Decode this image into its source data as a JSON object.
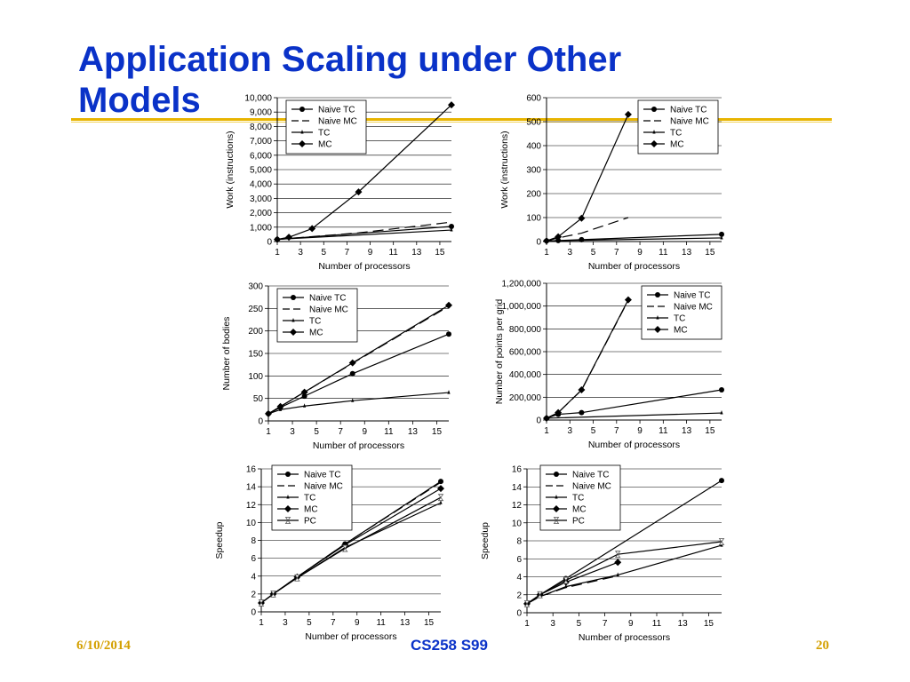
{
  "slide": {
    "title": "Application Scaling under Other Models",
    "footer_date": "6/10/2014",
    "footer_course": "CS258 S99",
    "page_number": "20"
  },
  "colors": {
    "title": "#0a32c8",
    "accent_line": "#e8b400",
    "footer": "#d4a000"
  },
  "chart_data": [
    {
      "type": "line",
      "xlabel": "Number of processors",
      "ylabel": "Work (instructions)",
      "xlim": [
        1,
        16
      ],
      "ylim": [
        0,
        10000
      ],
      "xticks": [
        1,
        3,
        5,
        7,
        9,
        11,
        13,
        15
      ],
      "xtick_labels": [
        "1",
        "3",
        "5",
        "7",
        "9",
        "11",
        "13",
        "15"
      ],
      "yticks": [
        0,
        1000,
        2000,
        3000,
        4000,
        5000,
        6000,
        7000,
        8000,
        9000,
        10000
      ],
      "ytick_labels": [
        "0",
        "1,000",
        "2,000",
        "3,000",
        "4,000",
        "5,000",
        "6,000",
        "7,000",
        "8,000",
        "9,000",
        "10,000"
      ],
      "grid": "horizontal",
      "legend": "top-left",
      "series": [
        {
          "name": "Naive TC",
          "marker": "circle",
          "dash": "solid",
          "x": [
            1,
            16
          ],
          "y": [
            150,
            1050
          ]
        },
        {
          "name": "Naive MC",
          "marker": "none",
          "dash": "dashed",
          "x": [
            1,
            8,
            16
          ],
          "y": [
            150,
            600,
            1350
          ]
        },
        {
          "name": "TC",
          "marker": "tick",
          "dash": "solid",
          "x": [
            1,
            16
          ],
          "y": [
            150,
            800
          ]
        },
        {
          "name": "MC",
          "marker": "diamond",
          "dash": "solid",
          "x": [
            1,
            2,
            4,
            8,
            16
          ],
          "y": [
            150,
            300,
            900,
            3450,
            9500
          ]
        }
      ]
    },
    {
      "type": "line",
      "xlabel": "Number of processors",
      "ylabel": "Work (instructions)",
      "xlim": [
        1,
        16
      ],
      "ylim": [
        0,
        600
      ],
      "xticks": [
        1,
        3,
        5,
        7,
        9,
        11,
        13,
        15
      ],
      "xtick_labels": [
        "1",
        "3",
        "5",
        "7",
        "9",
        "11",
        "13",
        "15"
      ],
      "yticks": [
        0,
        100,
        200,
        300,
        400,
        500,
        600
      ],
      "ytick_labels": [
        "0",
        "100",
        "200",
        "300",
        "400",
        "500",
        "600"
      ],
      "grid": "horizontal",
      "legend": "top-right",
      "series": [
        {
          "name": "Naive TC",
          "marker": "circle",
          "dash": "solid",
          "x": [
            1,
            2,
            4,
            16
          ],
          "y": [
            3,
            4,
            8,
            30
          ]
        },
        {
          "name": "Naive MC",
          "marker": "none",
          "dash": "dashed",
          "x": [
            1,
            2,
            4,
            8
          ],
          "y": [
            3,
            15,
            35,
            100
          ]
        },
        {
          "name": "TC",
          "marker": "tick",
          "dash": "solid",
          "x": [
            1,
            16
          ],
          "y": [
            3,
            15
          ]
        },
        {
          "name": "MC",
          "marker": "diamond",
          "dash": "solid",
          "x": [
            1,
            2,
            4,
            8
          ],
          "y": [
            3,
            20,
            97,
            530
          ]
        }
      ]
    },
    {
      "type": "line",
      "xlabel": "Number of processors",
      "ylabel": "Number of bodies",
      "xlim": [
        1,
        16
      ],
      "ylim": [
        0,
        300
      ],
      "xticks": [
        1,
        3,
        5,
        7,
        9,
        11,
        13,
        15
      ],
      "xtick_labels": [
        "1",
        "3",
        "5",
        "7",
        "9",
        "11",
        "13",
        "15"
      ],
      "yticks": [
        0,
        50,
        100,
        150,
        200,
        250,
        300
      ],
      "ytick_labels": [
        "0",
        "50",
        "100",
        "150",
        "200",
        "250",
        "300"
      ],
      "grid": "horizontal",
      "legend": "top-left",
      "series": [
        {
          "name": "Naive TC",
          "marker": "circle",
          "dash": "solid",
          "x": [
            1,
            2,
            4,
            8,
            16
          ],
          "y": [
            16,
            30,
            55,
            105,
            193
          ]
        },
        {
          "name": "Naive MC",
          "marker": "none",
          "dash": "dashed",
          "x": [
            1,
            2,
            4,
            8,
            16
          ],
          "y": [
            16,
            32,
            64,
            128,
            255
          ]
        },
        {
          "name": "TC",
          "marker": "tick",
          "dash": "solid",
          "x": [
            1,
            2,
            4,
            8,
            16
          ],
          "y": [
            16,
            25,
            33,
            45,
            63
          ]
        },
        {
          "name": "MC",
          "marker": "diamond",
          "dash": "solid",
          "x": [
            1,
            2,
            4,
            8,
            16
          ],
          "y": [
            16,
            32,
            64,
            129,
            257
          ]
        }
      ]
    },
    {
      "type": "line",
      "xlabel": "Number of processors",
      "ylabel": "Number of points per grid",
      "xlim": [
        1,
        16
      ],
      "ylim": [
        0,
        1200000
      ],
      "xticks": [
        1,
        3,
        5,
        7,
        9,
        11,
        13,
        15
      ],
      "xtick_labels": [
        "1",
        "3",
        "5",
        "7",
        "9",
        "11",
        "13",
        "15"
      ],
      "yticks": [
        0,
        200000,
        400000,
        600000,
        800000,
        1000000,
        1200000
      ],
      "ytick_labels": [
        "0",
        "200,000",
        "400,000",
        "600,000",
        "800,000",
        "1,000,000",
        "1,200,000"
      ],
      "grid": "horizontal",
      "legend": "top-right",
      "series": [
        {
          "name": "Naive TC",
          "marker": "circle",
          "dash": "solid",
          "x": [
            1,
            2,
            4,
            16
          ],
          "y": [
            16000,
            50000,
            65000,
            265000
          ]
        },
        {
          "name": "Naive MC",
          "marker": "none",
          "dash": "dashed",
          "x": [
            1,
            2,
            4,
            8
          ],
          "y": [
            16000,
            65000,
            262000,
            1050000
          ]
        },
        {
          "name": "TC",
          "marker": "tick",
          "dash": "solid",
          "x": [
            1,
            16
          ],
          "y": [
            16000,
            62000
          ]
        },
        {
          "name": "MC",
          "marker": "diamond",
          "dash": "solid",
          "x": [
            1,
            2,
            4,
            8
          ],
          "y": [
            16000,
            65000,
            265000,
            1055000
          ]
        }
      ]
    },
    {
      "type": "line",
      "xlabel": "Number of processors",
      "ylabel": "Speedup",
      "xlim": [
        1,
        16
      ],
      "ylim": [
        0,
        16
      ],
      "xticks": [
        1,
        3,
        5,
        7,
        9,
        11,
        13,
        15
      ],
      "xtick_labels": [
        "1",
        "3",
        "5",
        "7",
        "9",
        "11",
        "13",
        "15"
      ],
      "yticks": [
        0,
        2,
        4,
        6,
        8,
        10,
        12,
        14,
        16
      ],
      "ytick_labels": [
        "0",
        "2",
        "4",
        "6",
        "8",
        "10",
        "12",
        "14",
        "16"
      ],
      "grid": "horizontal",
      "legend": "top-left",
      "series": [
        {
          "name": "Naive TC",
          "marker": "circle",
          "dash": "solid",
          "x": [
            1,
            2,
            4,
            8,
            16
          ],
          "y": [
            1,
            2,
            3.9,
            7.6,
            14.6
          ]
        },
        {
          "name": "Naive MC",
          "marker": "none",
          "dash": "dashed",
          "x": [
            1,
            2,
            4,
            8,
            16
          ],
          "y": [
            1,
            2,
            3.9,
            7.6,
            14.5
          ]
        },
        {
          "name": "TC",
          "marker": "tick",
          "dash": "solid",
          "x": [
            1,
            2,
            4,
            8,
            16
          ],
          "y": [
            1,
            2,
            3.8,
            7.2,
            12.2
          ]
        },
        {
          "name": "MC",
          "marker": "diamond",
          "dash": "solid",
          "x": [
            1,
            2,
            4,
            8,
            16
          ],
          "y": [
            1,
            2,
            3.9,
            7.5,
            13.8
          ]
        },
        {
          "name": "PC",
          "marker": "hourglass",
          "dash": "solid",
          "x": [
            1,
            2,
            4,
            8,
            16
          ],
          "y": [
            1,
            2,
            3.8,
            7.1,
            12.8
          ]
        }
      ]
    },
    {
      "type": "line",
      "xlabel": "Number of processors",
      "ylabel": "Speedup",
      "xlim": [
        1,
        16
      ],
      "ylim": [
        0,
        16
      ],
      "xticks": [
        1,
        3,
        5,
        7,
        9,
        11,
        13,
        15
      ],
      "xtick_labels": [
        "1",
        "3",
        "5",
        "7",
        "9",
        "11",
        "13",
        "15"
      ],
      "yticks": [
        0,
        2,
        4,
        6,
        8,
        10,
        12,
        14,
        16
      ],
      "ytick_labels": [
        "0",
        "2",
        "4",
        "6",
        "8",
        "10",
        "12",
        "14",
        "16"
      ],
      "grid": "horizontal",
      "legend": "top-left",
      "series": [
        {
          "name": "Naive TC",
          "marker": "circle",
          "dash": "solid",
          "x": [
            1,
            2,
            4,
            16
          ],
          "y": [
            1,
            2,
            3.8,
            14.7
          ]
        },
        {
          "name": "Naive MC",
          "marker": "none",
          "dash": "dashed",
          "x": [
            1,
            2,
            4,
            8
          ],
          "y": [
            1,
            1.8,
            2.8,
            4.1
          ]
        },
        {
          "name": "TC",
          "marker": "tick",
          "dash": "solid",
          "x": [
            1,
            2,
            4,
            8,
            16
          ],
          "y": [
            1,
            1.8,
            2.9,
            4.2,
            7.5
          ]
        },
        {
          "name": "MC",
          "marker": "diamond",
          "dash": "solid",
          "x": [
            1,
            2,
            4,
            8
          ],
          "y": [
            1,
            2,
            3.4,
            5.6
          ]
        },
        {
          "name": "PC",
          "marker": "hourglass",
          "dash": "solid",
          "x": [
            1,
            2,
            4,
            8,
            16
          ],
          "y": [
            1,
            2,
            3.6,
            6.5,
            7.9
          ]
        }
      ]
    }
  ]
}
